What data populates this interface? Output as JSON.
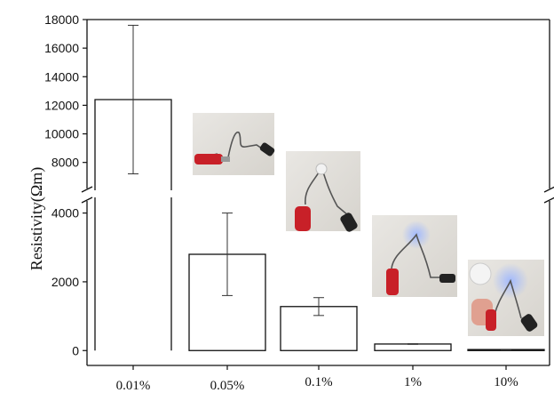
{
  "chart_data": {
    "type": "bar",
    "ylabel": "Resistivity(Ωm)",
    "xlabel": "",
    "title": "",
    "categories": [
      "0.01%",
      "0.05%",
      "0.1%",
      "1%",
      "10%"
    ],
    "values": [
      12400,
      2800,
      1280,
      190,
      30
    ],
    "error_bars": [
      5200,
      1200,
      260,
      10,
      5
    ],
    "y_axis": {
      "broken": true,
      "lower_segment": {
        "range": [
          -200,
          4300
        ],
        "ticks": [
          0,
          2000,
          4000
        ]
      },
      "upper_segment": {
        "range": [
          6300,
          18000
        ],
        "ticks": [
          8000,
          10000,
          12000,
          14000,
          16000,
          18000
        ]
      }
    },
    "bar_fill": "#ffffff",
    "bar_stroke": "#111111",
    "grid": false,
    "insets": [
      {
        "description_icon": "photo-circuit-0.05pct",
        "lamp": "off"
      },
      {
        "description_icon": "photo-circuit-0.1pct",
        "lamp": "dim"
      },
      {
        "description_icon": "photo-circuit-1pct",
        "lamp": "blue-glow"
      },
      {
        "description_icon": "photo-circuit-10pct",
        "lamp": "bright-blue-glow"
      }
    ]
  }
}
